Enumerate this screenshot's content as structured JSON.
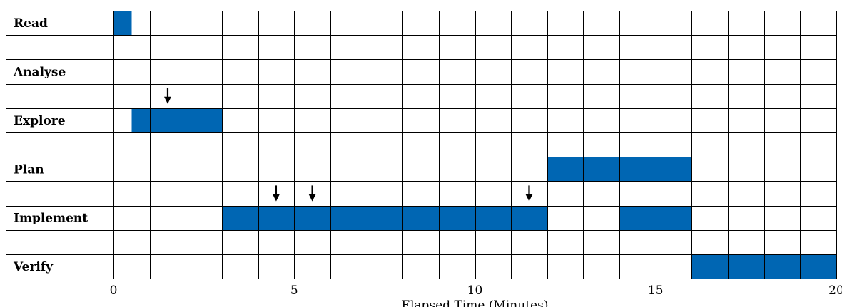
{
  "chart_data": {
    "type": "gantt",
    "xlabel": "Elapsed Time (Minutes)",
    "xlim": [
      0,
      20
    ],
    "x_ticks": [
      0,
      5,
      10,
      15,
      20
    ],
    "grid": true,
    "bar_color": "#0066b3",
    "rows": [
      {
        "label": "Read"
      },
      {
        "label": ""
      },
      {
        "label": "Analyse"
      },
      {
        "label": ""
      },
      {
        "label": "Explore"
      },
      {
        "label": ""
      },
      {
        "label": "Plan"
      },
      {
        "label": ""
      },
      {
        "label": "Implement"
      },
      {
        "label": ""
      },
      {
        "label": "Verify"
      }
    ],
    "bars": [
      {
        "activity": "Read",
        "start": 0,
        "end": 0.5
      },
      {
        "activity": "Explore",
        "start": 0.5,
        "end": 3
      },
      {
        "activity": "Plan",
        "start": 12,
        "end": 16
      },
      {
        "activity": "Implement",
        "start": 3,
        "end": 12
      },
      {
        "activity": "Implement",
        "start": 14,
        "end": 16
      },
      {
        "activity": "Verify",
        "start": 16,
        "end": 20
      }
    ],
    "markers": [
      {
        "activity": "Explore",
        "time": 1.5
      },
      {
        "activity": "Implement",
        "time": 4.5
      },
      {
        "activity": "Implement",
        "time": 5.5
      },
      {
        "activity": "Implement",
        "time": 11.5
      }
    ]
  }
}
